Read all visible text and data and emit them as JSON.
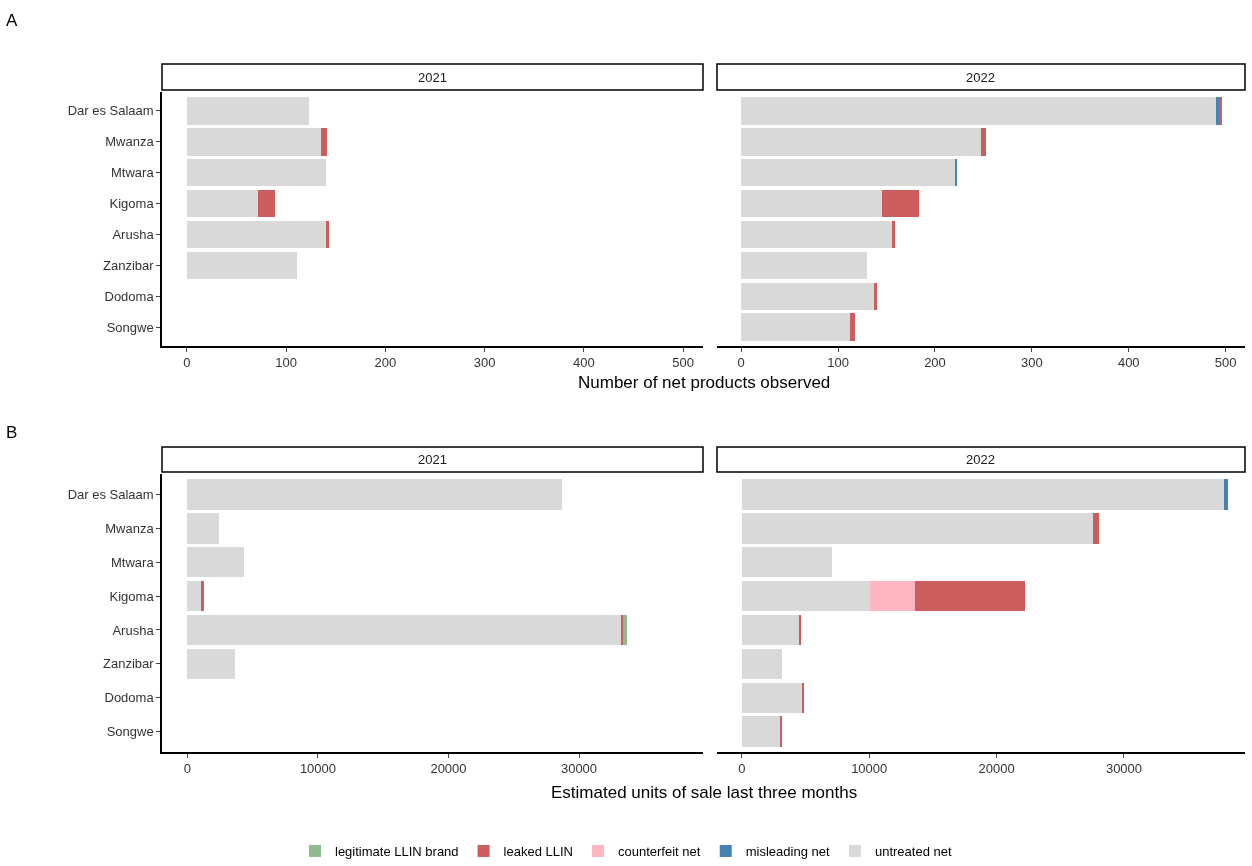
{
  "chart_data": [
    {
      "type": "bar",
      "orientation": "horizontal",
      "stacked": true,
      "title": "2021",
      "xlabel": "Number of net products observed",
      "annotations": [
        "A"
      ],
      "legend": "bottom",
      "categories": [
        "Dar es Salaam",
        "Mwanza",
        "Mtwara",
        "Kigoma",
        "Arusha",
        "Zanzibar",
        "Dodoma",
        "Songwe"
      ],
      "series": [
        {
          "name": "untreated net",
          "color": "#d9d9d9",
          "values": [
            123,
            135,
            140,
            72,
            140,
            111,
            null,
            null
          ]
        },
        {
          "name": "leaked LLIN",
          "color": "#cd5c5c",
          "values": [
            null,
            6,
            null,
            17,
            3,
            null,
            null,
            null
          ]
        }
      ],
      "xlim": [
        -25,
        520
      ],
      "xticks": [
        0,
        100,
        200,
        300,
        400,
        500
      ]
    },
    {
      "type": "bar",
      "orientation": "horizontal",
      "stacked": true,
      "title": "2022",
      "tick_labels": "x",
      "legend": "bottom",
      "categories": [
        "Dar es Salaam",
        "Mwanza",
        "Mtwara",
        "Kigoma",
        "Arusha",
        "Zanzibar",
        "Dodoma",
        "Songwe"
      ],
      "series": [
        {
          "name": "untreated net",
          "color": "#d9d9d9",
          "values": [
            491,
            248,
            221,
            145,
            156,
            130,
            138,
            112
          ]
        },
        {
          "name": "misleading net",
          "color": "#4682b4",
          "values": [
            2,
            null,
            1,
            null,
            null,
            null,
            null,
            null
          ]
        },
        {
          "name": "leaked LLIN",
          "color": "#cd5c5c",
          "values": [
            3,
            5,
            null,
            38,
            3,
            null,
            2,
            5
          ]
        }
      ],
      "xlim": [
        -25,
        520
      ],
      "xticks": [
        0,
        100,
        200,
        300,
        400,
        500
      ]
    },
    {
      "type": "bar",
      "orientation": "horizontal",
      "stacked": true,
      "title": "2021",
      "xlabel": "Estimated units of sale last three months",
      "annotations": [
        "B"
      ],
      "legend": "bottom",
      "categories": [
        "Dar es Salaam",
        "Mwanza",
        "Mtwara",
        "Kigoma",
        "Arusha",
        "Zanzibar",
        "Dodoma",
        "Songwe"
      ],
      "series": [
        {
          "name": "untreated net",
          "color": "#d9d9d9",
          "values": [
            28700,
            2400,
            4300,
            1100,
            33250,
            3650,
            null,
            null
          ]
        },
        {
          "name": "leaked LLIN",
          "color": "#cd5c5c",
          "values": [
            null,
            null,
            null,
            150,
            100,
            null,
            null,
            null
          ]
        },
        {
          "name": "legitimate LLIN brand",
          "color": "#8fbc8f",
          "values": [
            null,
            null,
            null,
            null,
            350,
            null,
            null,
            null
          ]
        }
      ],
      "xlim": [
        -1950,
        39500
      ],
      "xticks": [
        0,
        10000,
        20000,
        30000
      ]
    },
    {
      "type": "bar",
      "orientation": "horizontal",
      "stacked": true,
      "title": "2022",
      "tick_labels": "x",
      "legend": "bottom",
      "categories": [
        "Dar es Salaam",
        "Mwanza",
        "Mtwara",
        "Kigoma",
        "Arusha",
        "Zanzibar",
        "Dodoma",
        "Songwe"
      ],
      "series": [
        {
          "name": "untreated net",
          "color": "#d9d9d9",
          "values": [
            37850,
            27550,
            7100,
            10050,
            4550,
            3130,
            4800,
            3000
          ]
        },
        {
          "name": "misleading net",
          "color": "#4682b4",
          "values": [
            300,
            null,
            null,
            null,
            null,
            null,
            null,
            null
          ]
        },
        {
          "name": "counterfeit net",
          "color": "#ffb6c1",
          "values": [
            null,
            null,
            null,
            3550,
            null,
            null,
            null,
            null
          ]
        },
        {
          "name": "leaked LLIN",
          "color": "#cd5c5c",
          "values": [
            null,
            450,
            null,
            8600,
            100,
            null,
            100,
            150
          ]
        }
      ],
      "xlim": [
        -1950,
        39500
      ],
      "xticks": [
        0,
        10000,
        20000,
        30000
      ]
    }
  ]
}
